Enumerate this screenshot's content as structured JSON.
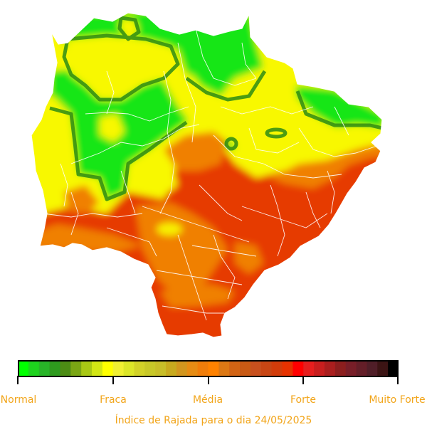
{
  "legend": {
    "colors": [
      "#00ff00",
      "#1ed21e",
      "#28b428",
      "#2e9a1e",
      "#4c8c14",
      "#7aa614",
      "#a8c814",
      "#d2e614",
      "#ffff00",
      "#f0f032",
      "#dce628",
      "#d2d228",
      "#c8c828",
      "#c8be28",
      "#c8aa1e",
      "#d2961e",
      "#e68c14",
      "#f07d0a",
      "#ff8200",
      "#dc7814",
      "#d26414",
      "#c85a14",
      "#c8501e",
      "#c84614",
      "#d23c0a",
      "#e63200",
      "#ff0000",
      "#e61e1e",
      "#c81e1e",
      "#aa1e1e",
      "#8c1e1e",
      "#781e28",
      "#641e28",
      "#501e28",
      "#3c1414",
      "#000000"
    ],
    "ticks": [
      "Normal",
      "Fraca",
      "Média",
      "Forte",
      "Muito Forte"
    ]
  },
  "caption": "Índice de Rajada para o dia 24/05/2025"
}
